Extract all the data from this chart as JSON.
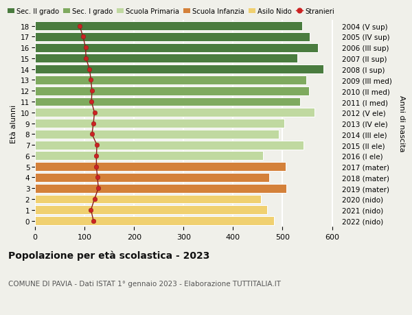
{
  "ages": [
    18,
    17,
    16,
    15,
    14,
    13,
    12,
    11,
    10,
    9,
    8,
    7,
    6,
    5,
    4,
    3,
    2,
    1,
    0
  ],
  "right_labels": [
    "2004 (V sup)",
    "2005 (IV sup)",
    "2006 (III sup)",
    "2007 (II sup)",
    "2008 (I sup)",
    "2009 (III med)",
    "2010 (II med)",
    "2011 (I med)",
    "2012 (V ele)",
    "2013 (IV ele)",
    "2014 (III ele)",
    "2015 (II ele)",
    "2016 (I ele)",
    "2017 (mater)",
    "2018 (mater)",
    "2019 (mater)",
    "2020 (nido)",
    "2021 (nido)",
    "2022 (nido)"
  ],
  "bar_values": [
    540,
    555,
    572,
    530,
    582,
    548,
    553,
    536,
    565,
    504,
    492,
    542,
    461,
    506,
    473,
    507,
    457,
    469,
    482
  ],
  "bar_colors": [
    "#4a7c3f",
    "#4a7c3f",
    "#4a7c3f",
    "#4a7c3f",
    "#4a7c3f",
    "#7faa5f",
    "#7faa5f",
    "#7faa5f",
    "#c0d9a0",
    "#c0d9a0",
    "#c0d9a0",
    "#c0d9a0",
    "#c0d9a0",
    "#d4813a",
    "#d4813a",
    "#d4813a",
    "#f0d070",
    "#f0d070",
    "#f0d070"
  ],
  "stranieri_values": [
    90,
    97,
    102,
    103,
    110,
    113,
    115,
    114,
    120,
    118,
    115,
    125,
    124,
    124,
    126,
    128,
    120,
    113,
    118
  ],
  "stranieri_dot_color": "#cc2222",
  "stranieri_line_color": "#8b1a1a",
  "legend_labels": [
    "Sec. II grado",
    "Sec. I grado",
    "Scuola Primaria",
    "Scuola Infanzia",
    "Asilo Nido",
    "Stranieri"
  ],
  "legend_colors": [
    "#4a7c3f",
    "#7faa5f",
    "#c0d9a0",
    "#d4813a",
    "#f0d070"
  ],
  "xlabel_left": "Età alunni",
  "ylabel_right": "Anni di nascita",
  "title": "Popolazione per età scolastica - 2023",
  "subtitle": "COMUNE DI PAVIA - Dati ISTAT 1° gennaio 2023 - Elaborazione TUTTITALIA.IT",
  "bg_color": "#f0f0ea",
  "bar_edge_color": "#ffffff",
  "grid_color": "#ffffff",
  "xticks": [
    0,
    100,
    200,
    300,
    400,
    500,
    600
  ],
  "xlim_max": 610
}
